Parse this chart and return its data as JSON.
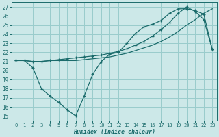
{
  "xlabel": "Humidex (Indice chaleur)",
  "bg_color": "#cce8e8",
  "grid_color": "#99cccc",
  "line_color": "#1a6b6b",
  "xlim": [
    -0.5,
    23.5
  ],
  "ylim": [
    14.5,
    27.5
  ],
  "xticks": [
    0,
    1,
    2,
    3,
    4,
    5,
    6,
    7,
    8,
    9,
    10,
    11,
    12,
    13,
    14,
    15,
    16,
    17,
    18,
    19,
    20,
    21,
    22,
    23
  ],
  "yticks": [
    15,
    16,
    17,
    18,
    19,
    20,
    21,
    22,
    23,
    24,
    25,
    26,
    27
  ],
  "line1_x": [
    0,
    1,
    2,
    3,
    4,
    5,
    6,
    7,
    8,
    9,
    10,
    11,
    12,
    13,
    14,
    15,
    16,
    17,
    18,
    19,
    20,
    21,
    22,
    23
  ],
  "line1_y": [
    21.1,
    21.1,
    20.3,
    18.0,
    17.2,
    16.5,
    15.7,
    15.0,
    17.2,
    19.6,
    21.0,
    21.8,
    22.0,
    23.0,
    24.1,
    24.8,
    25.1,
    25.5,
    26.3,
    26.8,
    26.8,
    26.6,
    26.2,
    22.3
  ],
  "line2_x": [
    0,
    1,
    2,
    3,
    4,
    5,
    6,
    7,
    8,
    9,
    10,
    11,
    12,
    13,
    14,
    15,
    16,
    17,
    18,
    19,
    20,
    21,
    22,
    23
  ],
  "line2_y": [
    21.1,
    21.1,
    21.0,
    21.0,
    21.1,
    21.1,
    21.1,
    21.1,
    21.2,
    21.3,
    21.4,
    21.5,
    21.7,
    21.9,
    22.2,
    22.5,
    22.8,
    23.2,
    23.7,
    24.3,
    25.0,
    25.6,
    26.3,
    26.8
  ],
  "line3_x": [
    0,
    1,
    2,
    3,
    4,
    5,
    6,
    7,
    8,
    9,
    10,
    11,
    12,
    13,
    14,
    15,
    16,
    17,
    18,
    19,
    20,
    21,
    22,
    23
  ],
  "line3_y": [
    21.1,
    21.1,
    21.0,
    21.0,
    21.1,
    21.2,
    21.3,
    21.4,
    21.5,
    21.6,
    21.7,
    21.9,
    22.1,
    22.4,
    22.8,
    23.2,
    23.8,
    24.5,
    25.3,
    26.3,
    27.0,
    26.5,
    25.6,
    22.3
  ]
}
